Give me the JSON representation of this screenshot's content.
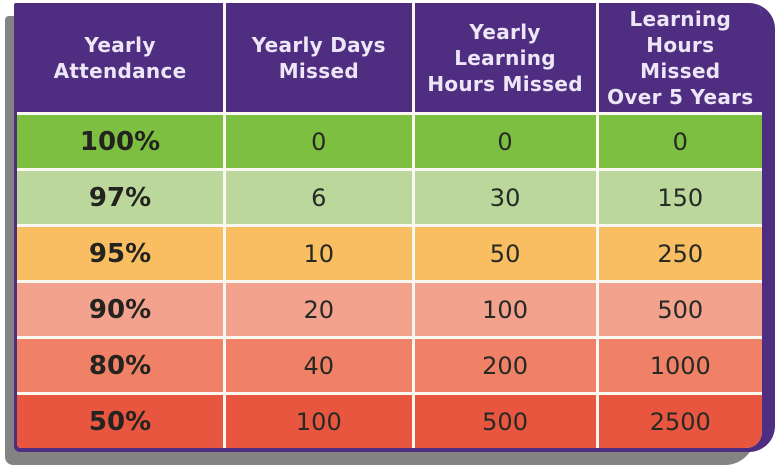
{
  "colors": {
    "frame_purple": "#4f2d80",
    "shadow_gray": "#838383",
    "divider_cream": "#faf8f1",
    "header_text": "#ece6f6",
    "cell_text": "#262a24",
    "row_colors": [
      "#7dbf41",
      "#bcd79c",
      "#f9bd62",
      "#f3a28e",
      "#f08167",
      "#e95640"
    ]
  },
  "table": {
    "headers": [
      "Yearly\nAttendance",
      "Yearly Days\nMissed",
      "Yearly\nLearning\nHours Missed",
      "Learning\nHours Missed\nOver 5 Years"
    ],
    "rows": [
      {
        "attendance": "100%",
        "days_missed": "0",
        "yearly_hours_missed": "0",
        "hours_missed_5_years": "0"
      },
      {
        "attendance": "97%",
        "days_missed": "6",
        "yearly_hours_missed": "30",
        "hours_missed_5_years": "150"
      },
      {
        "attendance": "95%",
        "days_missed": "10",
        "yearly_hours_missed": "50",
        "hours_missed_5_years": "250"
      },
      {
        "attendance": "90%",
        "days_missed": "20",
        "yearly_hours_missed": "100",
        "hours_missed_5_years": "500"
      },
      {
        "attendance": "80%",
        "days_missed": "40",
        "yearly_hours_missed": "200",
        "hours_missed_5_years": "1000"
      },
      {
        "attendance": "50%",
        "days_missed": "100",
        "yearly_hours_missed": "500",
        "hours_missed_5_years": "2500"
      }
    ]
  },
  "chart_data": {
    "type": "table",
    "columns": [
      "Yearly Attendance",
      "Yearly Days Missed",
      "Yearly Learning Hours Missed",
      "Learning Hours Missed Over 5 Years"
    ],
    "rows": [
      [
        "100%",
        0,
        0,
        0
      ],
      [
        "97%",
        6,
        30,
        150
      ],
      [
        "95%",
        10,
        50,
        250
      ],
      [
        "90%",
        20,
        100,
        500
      ],
      [
        "80%",
        40,
        200,
        1000
      ],
      [
        "50%",
        100,
        500,
        2500
      ]
    ],
    "row_colors": [
      "#7dbf41",
      "#bcd79c",
      "#f9bd62",
      "#f3a28e",
      "#f08167",
      "#e95640"
    ],
    "legend_position": "none",
    "grid": "cream divider lines between all cells"
  }
}
